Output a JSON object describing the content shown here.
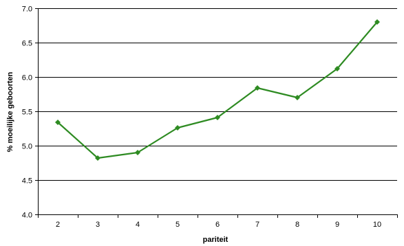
{
  "chart_data": {
    "type": "line",
    "title": "",
    "xlabel": "pariteit",
    "ylabel": "% moeilijke geboorten",
    "categories": [
      "2",
      "3",
      "4",
      "5",
      "6",
      "7",
      "8",
      "9",
      "10"
    ],
    "y_tick_labels": [
      "4.0",
      "4.5",
      "5.0",
      "5.5",
      "6.0",
      "6.5",
      "7.0"
    ],
    "ylim": [
      4.0,
      7.0
    ],
    "y_major_step": 0.5,
    "grid": "horizontal",
    "legend": "none",
    "series": [
      {
        "values": [
          5.34,
          4.82,
          4.9,
          5.26,
          5.41,
          5.84,
          5.7,
          6.12,
          6.8
        ]
      }
    ],
    "colors": {
      "line": "#2e8b22",
      "marker": "#2e8b22",
      "grid": "#000000",
      "axis": "#000000"
    }
  }
}
